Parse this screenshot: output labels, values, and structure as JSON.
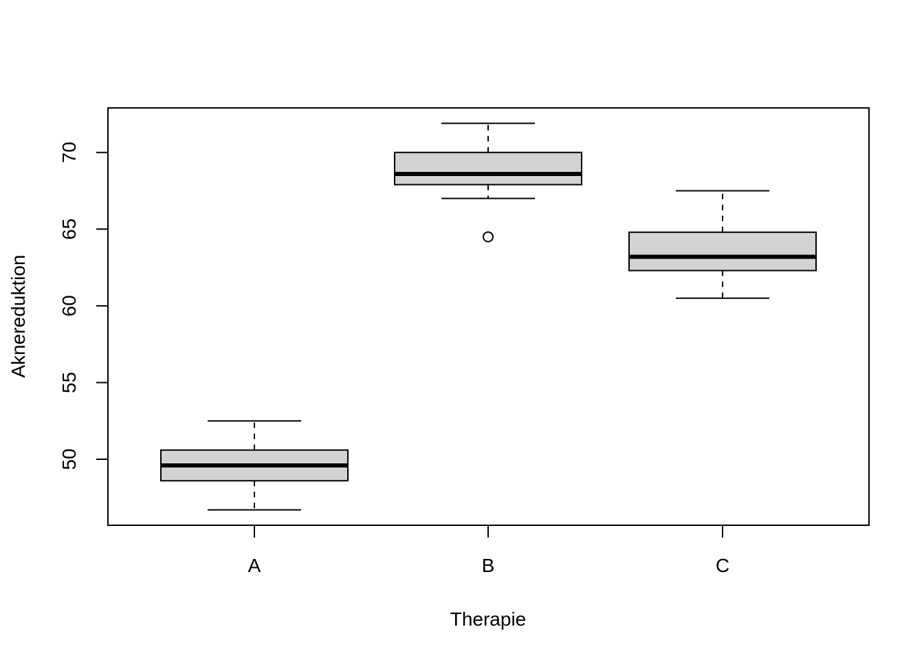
{
  "chart_data": {
    "type": "boxplot",
    "xlabel": "Therapie",
    "ylabel": "Aknereduktion",
    "categories": [
      "A",
      "B",
      "C"
    ],
    "ylim": [
      45.7,
      72.9
    ],
    "y_ticks": [
      50,
      55,
      60,
      65,
      70
    ],
    "grid": false,
    "boxes": [
      {
        "category": "A",
        "whisker_low": 46.7,
        "q1": 48.6,
        "median": 49.6,
        "q3": 50.6,
        "whisker_high": 52.5,
        "outliers": []
      },
      {
        "category": "B",
        "whisker_low": 67.0,
        "q1": 67.9,
        "median": 68.6,
        "q3": 70.0,
        "whisker_high": 71.9,
        "outliers": [
          64.5
        ]
      },
      {
        "category": "C",
        "whisker_low": 60.5,
        "q1": 62.3,
        "median": 63.2,
        "q3": 64.8,
        "whisker_high": 67.5,
        "outliers": []
      }
    ],
    "colors": {
      "box_fill": "#d3d3d3",
      "stroke": "#000000"
    }
  }
}
